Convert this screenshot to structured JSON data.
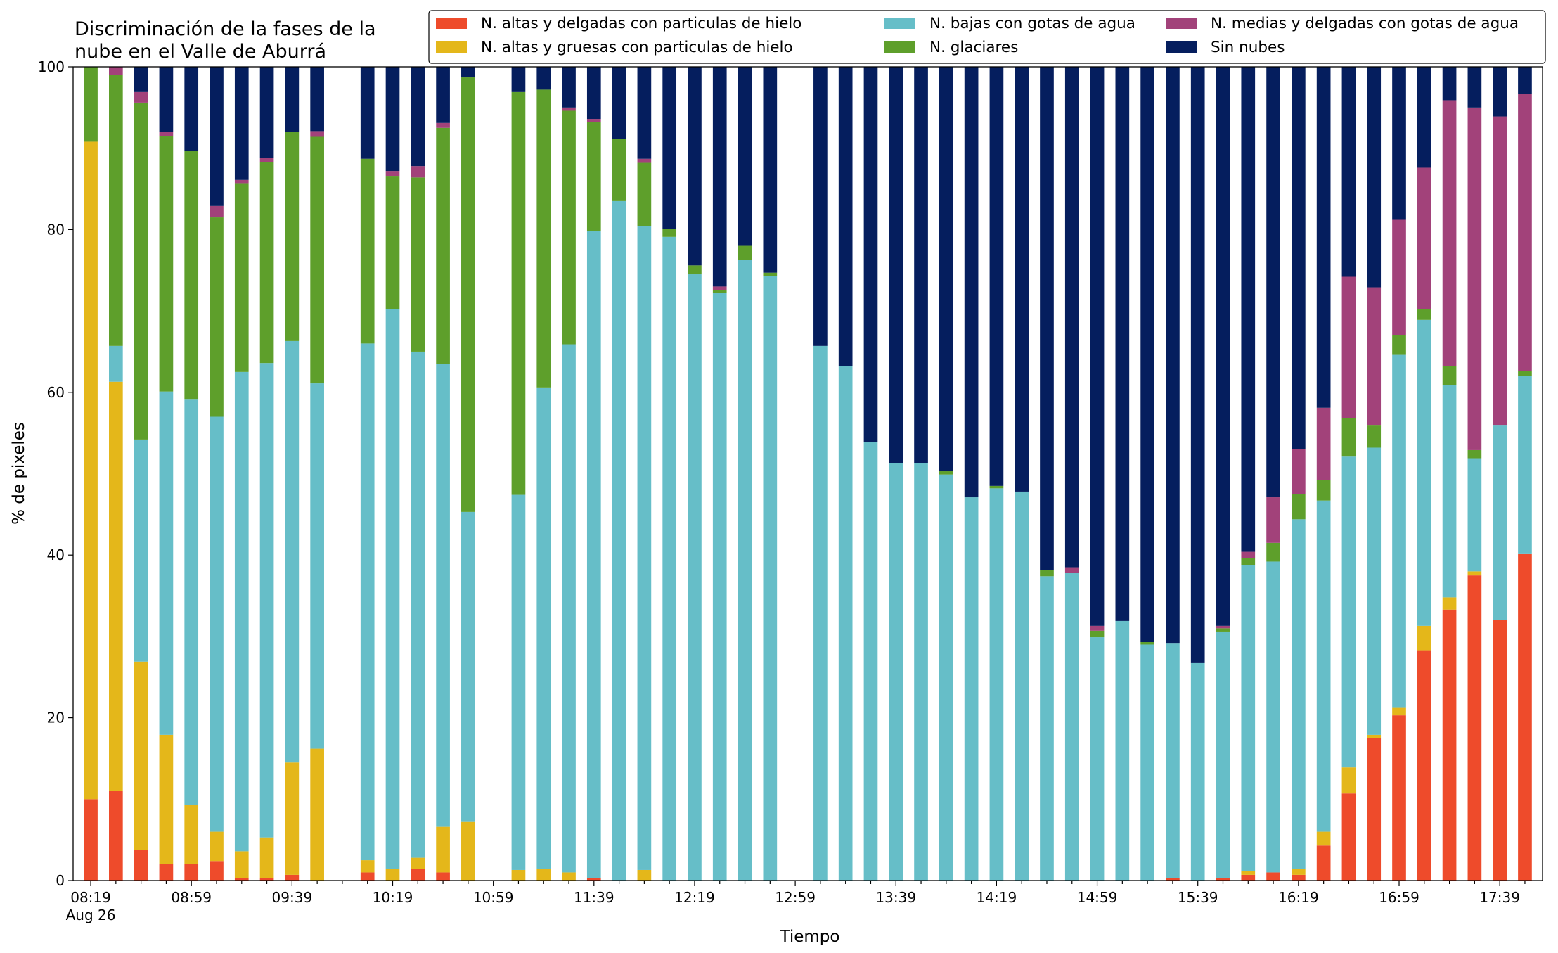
{
  "chart_data": {
    "type": "bar",
    "stacked": true,
    "title_lines": [
      "Discriminación de la fases de la",
      "nube en el Valle de Aburrá"
    ],
    "xlabel": "Tiempo",
    "ylabel": "% de pixeles",
    "ylim": [
      0,
      100
    ],
    "yticks": [
      0,
      20,
      40,
      60,
      80,
      100
    ],
    "legend": {
      "placement": "top-right",
      "columns": 3
    },
    "x_tick_labels": [
      {
        "label": "08:19",
        "sub": "Aug 26"
      },
      {
        "label": "08:59"
      },
      {
        "label": "09:39"
      },
      {
        "label": "10:19"
      },
      {
        "label": "10:59"
      },
      {
        "label": "11:39"
      },
      {
        "label": "12:19"
      },
      {
        "label": "12:59"
      },
      {
        "label": "13:39"
      },
      {
        "label": "14:19"
      },
      {
        "label": "14:59"
      },
      {
        "label": "15:39"
      },
      {
        "label": "16:19"
      },
      {
        "label": "16:59"
      },
      {
        "label": "17:39"
      }
    ],
    "time_start": "08:19",
    "time_step_minutes": 10,
    "series_order": [
      "altas_delgadas",
      "altas_gruesas",
      "bajas",
      "glaciares",
      "medias",
      "sin_nubes"
    ],
    "series": [
      {
        "key": "altas_delgadas",
        "name": "N. altas y delgadas con particulas de hielo",
        "color": "#EE4B2B"
      },
      {
        "key": "altas_gruesas",
        "name": "N. altas y gruesas con particulas de hielo",
        "color": "#E4B71A"
      },
      {
        "key": "bajas",
        "name": "N. bajas con gotas de agua",
        "color": "#66BEC8"
      },
      {
        "key": "glaciares",
        "name": "N. glaciares",
        "color": "#5E9F2B"
      },
      {
        "key": "medias",
        "name": "N. medias y delgadas con gotas de agua",
        "color": "#A2427A"
      },
      {
        "key": "sin_nubes",
        "name": "Sin nubes",
        "color": "#051E5E"
      }
    ],
    "bars": [
      {
        "time": "08:19",
        "values": [
          10,
          80.8,
          0,
          9.2,
          0,
          0
        ]
      },
      {
        "time": "08:29",
        "values": [
          11,
          50.3,
          4.4,
          33.3,
          1,
          0
        ]
      },
      {
        "time": "08:39",
        "values": [
          3.8,
          23.1,
          27.3,
          41.4,
          1.3,
          3.1
        ]
      },
      {
        "time": "08:49",
        "values": [
          2,
          15.9,
          42.2,
          31.4,
          0.5,
          8
        ]
      },
      {
        "time": "08:59",
        "values": [
          2,
          7.3,
          49.8,
          30.6,
          0,
          10.3
        ]
      },
      {
        "time": "09:09",
        "values": [
          2.4,
          3.6,
          51,
          24.5,
          1.4,
          17.1
        ]
      },
      {
        "time": "09:19",
        "values": [
          0.3,
          3.3,
          58.9,
          23.2,
          0.4,
          13.9
        ]
      },
      {
        "time": "09:29",
        "values": [
          0.3,
          5,
          58.3,
          24.7,
          0.5,
          11.2
        ]
      },
      {
        "time": "09:39",
        "values": [
          0.7,
          13.8,
          51.8,
          25.7,
          0,
          8
        ]
      },
      {
        "time": "09:49",
        "values": [
          0,
          16.2,
          44.9,
          30.3,
          0.7,
          7.9
        ]
      },
      {
        "time": "09:59",
        "values": [
          0,
          0,
          0,
          0,
          0,
          0
        ]
      },
      {
        "time": "10:09",
        "values": [
          1,
          1.5,
          63.5,
          22.7,
          0,
          11.3
        ]
      },
      {
        "time": "10:19",
        "values": [
          0,
          1.4,
          68.8,
          16.4,
          0.6,
          12.8
        ]
      },
      {
        "time": "10:29",
        "values": [
          1.4,
          1.4,
          62.2,
          21.4,
          1.4,
          12.2
        ]
      },
      {
        "time": "10:39",
        "values": [
          1,
          5.6,
          56.9,
          29,
          0.6,
          6.9
        ]
      },
      {
        "time": "10:49",
        "values": [
          0,
          7.2,
          38.1,
          53.4,
          0,
          1.3
        ]
      },
      {
        "time": "10:59",
        "values": [
          0,
          0,
          0,
          0,
          0,
          0
        ]
      },
      {
        "time": "11:09",
        "values": [
          0,
          1.3,
          46.1,
          49.5,
          0,
          3.1
        ]
      },
      {
        "time": "11:19",
        "values": [
          0,
          1.4,
          59.2,
          36.6,
          0,
          2.8
        ]
      },
      {
        "time": "11:29",
        "values": [
          0,
          1,
          64.9,
          28.7,
          0.4,
          5
        ]
      },
      {
        "time": "11:39",
        "values": [
          0.3,
          0,
          79.5,
          13.4,
          0.4,
          6.4
        ]
      },
      {
        "time": "11:49",
        "values": [
          0,
          0,
          83.5,
          7.6,
          0,
          8.9
        ]
      },
      {
        "time": "11:59",
        "values": [
          0,
          1.3,
          79.1,
          7.8,
          0.5,
          11.3
        ]
      },
      {
        "time": "12:09",
        "values": [
          0,
          0,
          79.1,
          1,
          0,
          19.9
        ]
      },
      {
        "time": "12:19",
        "values": [
          0,
          0,
          74.5,
          1.1,
          0,
          24.4
        ]
      },
      {
        "time": "12:29",
        "values": [
          0,
          0,
          72.2,
          0.4,
          0.4,
          27
        ]
      },
      {
        "time": "12:39",
        "values": [
          0,
          0,
          76.3,
          1.7,
          0,
          22
        ]
      },
      {
        "time": "12:49",
        "values": [
          0,
          0,
          74.3,
          0.4,
          0,
          25.3
        ]
      },
      {
        "time": "12:59",
        "values": [
          0,
          0,
          0,
          0,
          0,
          0
        ]
      },
      {
        "time": "13:09",
        "values": [
          0,
          0,
          65.7,
          0,
          0,
          34.3
        ]
      },
      {
        "time": "13:19",
        "values": [
          0,
          0,
          63.2,
          0,
          0,
          36.8
        ]
      },
      {
        "time": "13:29",
        "values": [
          0,
          0,
          53.9,
          0,
          0,
          46.1
        ]
      },
      {
        "time": "13:39",
        "values": [
          0,
          0,
          51.3,
          0,
          0,
          48.7
        ]
      },
      {
        "time": "13:49",
        "values": [
          0,
          0,
          51.3,
          0,
          0,
          48.7
        ]
      },
      {
        "time": "13:59",
        "values": [
          0,
          0,
          49.9,
          0.4,
          0,
          49.7
        ]
      },
      {
        "time": "14:09",
        "values": [
          0,
          0,
          47.1,
          0,
          0,
          52.9
        ]
      },
      {
        "time": "14:19",
        "values": [
          0,
          0,
          48.2,
          0.3,
          0,
          51.5
        ]
      },
      {
        "time": "14:29",
        "values": [
          0,
          0,
          47.8,
          0,
          0,
          52.2
        ]
      },
      {
        "time": "14:39",
        "values": [
          0,
          0,
          37.4,
          0.8,
          0,
          61.8
        ]
      },
      {
        "time": "14:49",
        "values": [
          0,
          0,
          37.8,
          0,
          0.7,
          61.5
        ]
      },
      {
        "time": "14:59",
        "values": [
          0,
          0,
          29.9,
          0.8,
          0.6,
          68.7
        ]
      },
      {
        "time": "15:09",
        "values": [
          0,
          0,
          31.9,
          0,
          0,
          68.1
        ]
      },
      {
        "time": "15:19",
        "values": [
          0,
          0,
          29,
          0.3,
          0,
          70.7
        ]
      },
      {
        "time": "15:29",
        "values": [
          0.3,
          0,
          28.9,
          0,
          0,
          70.8
        ]
      },
      {
        "time": "15:39",
        "values": [
          0,
          0,
          26.8,
          0,
          0,
          73.2
        ]
      },
      {
        "time": "15:49",
        "values": [
          0.3,
          0,
          30.3,
          0.4,
          0.3,
          68.7
        ]
      },
      {
        "time": "15:59",
        "values": [
          0.7,
          0.5,
          37.6,
          0.8,
          0.8,
          59.6
        ]
      },
      {
        "time": "16:09",
        "values": [
          1,
          0,
          38.2,
          2.3,
          5.6,
          52.9
        ]
      },
      {
        "time": "16:19",
        "values": [
          0.7,
          0.7,
          43,
          3.1,
          5.5,
          47
        ]
      },
      {
        "time": "16:29",
        "values": [
          4.3,
          1.7,
          40.7,
          2.5,
          8.9,
          41.9
        ]
      },
      {
        "time": "16:39",
        "values": [
          10.7,
          3.2,
          38.2,
          4.7,
          17.4,
          25.8
        ]
      },
      {
        "time": "16:49",
        "values": [
          17.5,
          0.4,
          35.3,
          2.8,
          16.9,
          27.1
        ]
      },
      {
        "time": "16:59",
        "values": [
          20.3,
          1,
          43.3,
          2.4,
          14.2,
          18.8
        ]
      },
      {
        "time": "17:09",
        "values": [
          28.3,
          3,
          37.6,
          1.3,
          17.4,
          12.4
        ]
      },
      {
        "time": "17:19",
        "values": [
          33.3,
          1.5,
          26.1,
          2.3,
          32.7,
          4.1
        ]
      },
      {
        "time": "17:29",
        "values": [
          37.5,
          0.5,
          13.9,
          1,
          42.1,
          5
        ]
      },
      {
        "time": "17:39",
        "values": [
          32,
          0,
          24,
          0,
          37.9,
          6.1
        ]
      },
      {
        "time": "17:49",
        "values": [
          40.2,
          0,
          21.8,
          0.6,
          34.1,
          3.3
        ]
      }
    ]
  }
}
